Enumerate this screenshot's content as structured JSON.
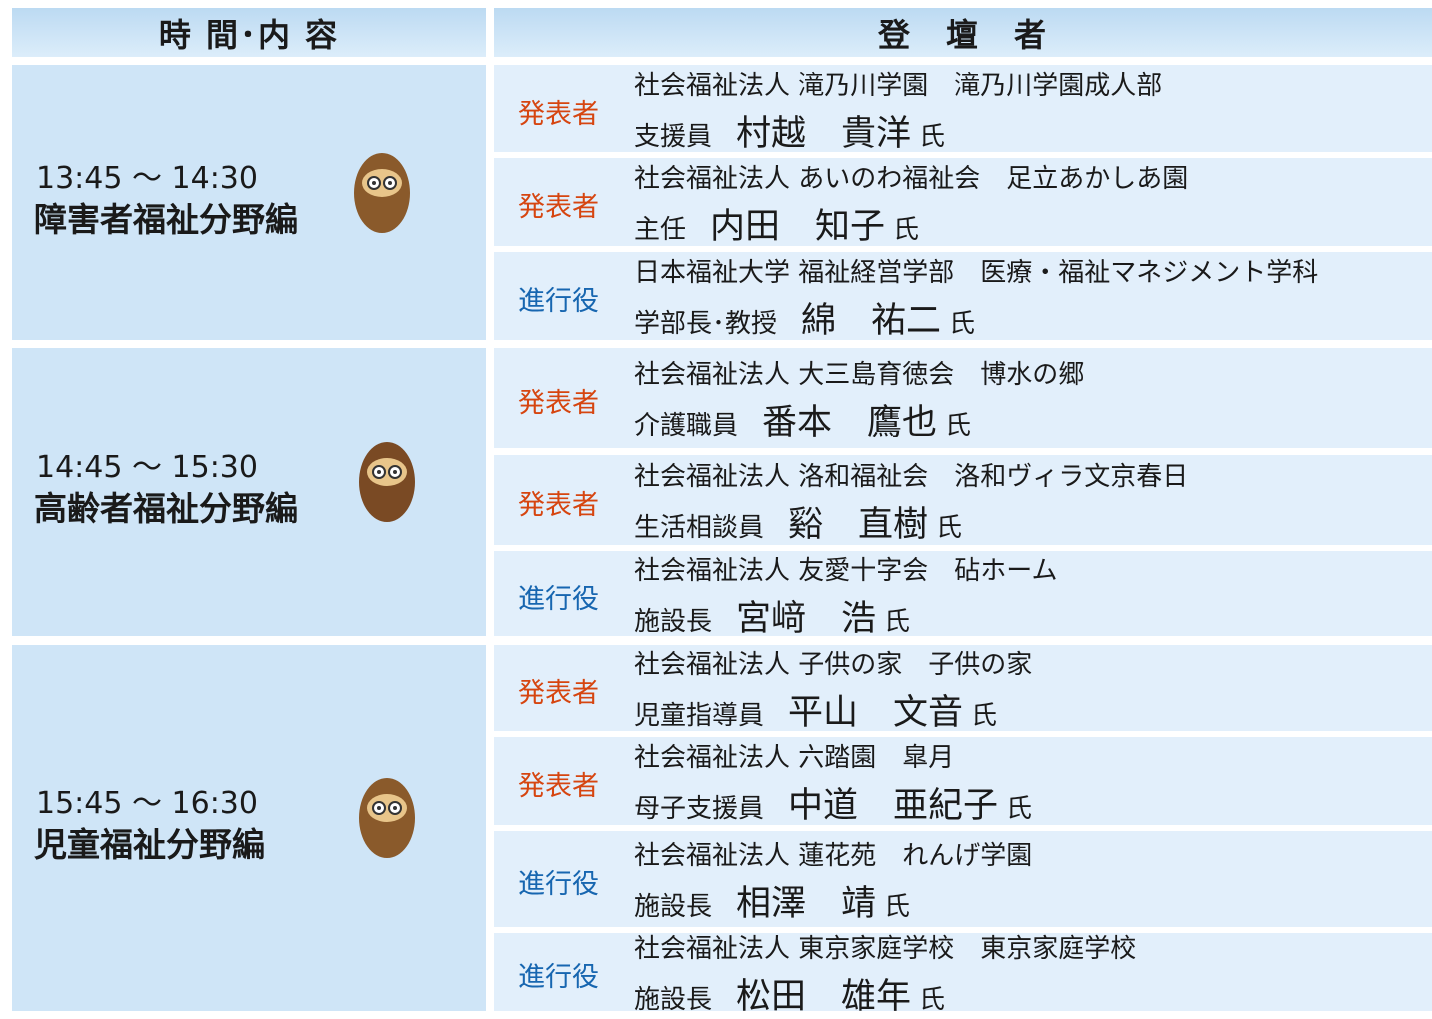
{
  "header": {
    "time_col": "時 間･内 容",
    "speaker_col": "登　壇　者"
  },
  "sections": [
    {
      "time": "13:45 ～ 14:30",
      "title": "障害者福祉分野編",
      "speakers": [
        {
          "role": "発表者",
          "org": "社会福祉法人 滝乃川学園　滝乃川学園成人部",
          "position": "支援員",
          "name": "村越　貴洋",
          "honorific": "氏"
        },
        {
          "role": "発表者",
          "org": "社会福祉法人 あいのわ福祉会　足立あかしあ園",
          "position": "主任",
          "name": "内田　知子",
          "honorific": "氏"
        },
        {
          "role": "進行役",
          "org": "日本福祉大学 福祉経営学部　医療・福祉マネジメント学科",
          "position": "学部長･教授",
          "name": "綿　祐二",
          "honorific": "氏"
        }
      ]
    },
    {
      "time": "14:45 ～ 15:30",
      "title": "高齢者福祉分野編",
      "speakers": [
        {
          "role": "発表者",
          "org": "社会福祉法人 大三島育徳会　博水の郷",
          "position": "介護職員",
          "name": "番本　鷹也",
          "honorific": "氏"
        },
        {
          "role": "発表者",
          "org": "社会福祉法人 洛和福祉会　洛和ヴィラ文京春日",
          "position": "生活相談員",
          "name": "谿　直樹",
          "honorific": "氏"
        },
        {
          "role": "進行役",
          "org": "社会福祉法人 友愛十字会　砧ホーム",
          "position": "施設長",
          "name": "宮﨑　浩",
          "honorific": "氏"
        }
      ]
    },
    {
      "time": "15:45 ～ 16:30",
      "title": "児童福祉分野編",
      "speakers": [
        {
          "role": "発表者",
          "org": "社会福祉法人 子供の家　子供の家",
          "position": "児童指導員",
          "name": "平山　文音",
          "honorific": "氏"
        },
        {
          "role": "発表者",
          "org": "社会福祉法人 六踏園　皐月",
          "position": "母子支援員",
          "name": "中道　亜紀子",
          "honorific": "氏"
        },
        {
          "role": "進行役",
          "org": "社会福祉法人 蓮花苑　れんげ学園",
          "position": "施設長",
          "name": "相澤　靖",
          "honorific": "氏"
        },
        {
          "role": "進行役",
          "org": "社会福祉法人 東京家庭学校　東京家庭学校",
          "position": "施設長",
          "name": "松田　雄年",
          "honorific": "氏"
        }
      ]
    }
  ]
}
